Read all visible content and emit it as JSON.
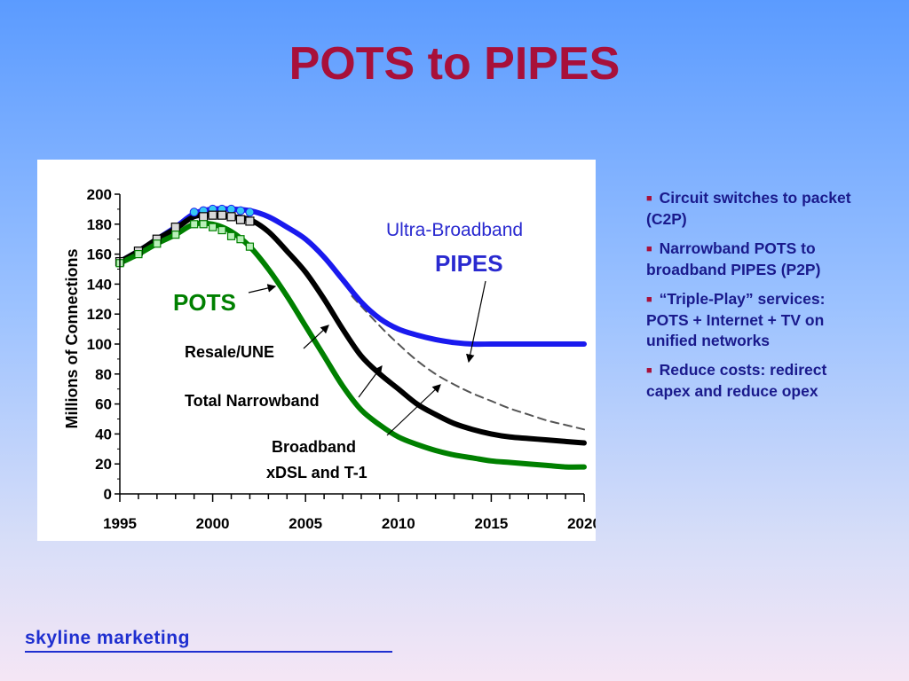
{
  "slide": {
    "title": "POTS to PIPES",
    "bullets": [
      "Circuit switches to packet (C2P)",
      "Narrowband POTS to broadband PIPES (P2P)",
      "“Triple-Play” services:  POTS + Internet + TV on unified networks",
      "Reduce costs: redirect capex and reduce opex"
    ],
    "footer": "skyline marketing"
  },
  "colors": {
    "title": "#a8103a",
    "bullet_text": "#1a1a8c",
    "footer": "#1f2fd0",
    "ultra_broadband": "#1a1aee",
    "total_narrowband": "#000000",
    "pots": "#008000",
    "dashed": "#555555"
  },
  "chart_data": {
    "type": "line",
    "ylabel": "Millions of Connections",
    "xlabel": "",
    "xlim": [
      1995,
      2020
    ],
    "ylim": [
      0,
      200
    ],
    "xticks": [
      "1995",
      "2000",
      "2005",
      "2010",
      "2015",
      "2020"
    ],
    "yticks": [
      "0",
      "20",
      "40",
      "60",
      "80",
      "100",
      "120",
      "140",
      "160",
      "180",
      "200"
    ],
    "annotations": [
      "Ultra-Broadband",
      "PIPES",
      "POTS",
      "Resale/UNE",
      "Total Narrowband",
      "Broadband",
      "xDSL and T-1"
    ],
    "series": [
      {
        "name": "Ultra-Broadband PIPES",
        "color": "#1a1aee",
        "x": [
          1995,
          1996,
          1997,
          1998,
          1999,
          2000,
          2001,
          2002,
          2003,
          2004,
          2005,
          2006,
          2007,
          2008,
          2009,
          2010,
          2011,
          2012,
          2013,
          2014,
          2015,
          2016,
          2017,
          2018,
          2019,
          2020
        ],
        "y": [
          155,
          162,
          170,
          178,
          187,
          190,
          190,
          189,
          185,
          178,
          170,
          158,
          143,
          128,
          117,
          110,
          106,
          103,
          101,
          100,
          100,
          100,
          100,
          100,
          100,
          100
        ],
        "markers_x": [
          1999,
          1999.5,
          2000,
          2000.5,
          2001,
          2001.5,
          2002
        ],
        "markers_y": [
          188,
          189,
          190,
          190,
          190,
          189,
          188
        ]
      },
      {
        "name": "Total Narrowband",
        "color": "#000000",
        "x": [
          1995,
          1996,
          1997,
          1998,
          1999,
          2000,
          2001,
          2002,
          2003,
          2004,
          2005,
          2006,
          2007,
          2008,
          2009,
          2010,
          2011,
          2012,
          2013,
          2014,
          2015,
          2016,
          2017,
          2018,
          2019,
          2020
        ],
        "y": [
          155,
          162,
          170,
          177,
          185,
          186,
          185,
          183,
          175,
          162,
          148,
          130,
          110,
          92,
          80,
          70,
          60,
          53,
          47,
          43,
          40,
          38,
          37,
          36,
          35,
          34
        ],
        "markers_x": [
          1995,
          1996,
          1997,
          1998,
          1999.5,
          2000,
          2000.5,
          2001,
          2001.5,
          2002
        ],
        "markers_y": [
          155,
          162,
          170,
          178,
          185,
          186,
          186,
          185,
          183,
          182
        ]
      },
      {
        "name": "POTS",
        "color": "#008000",
        "x": [
          1995,
          1996,
          1997,
          1998,
          1999,
          2000,
          2001,
          2002,
          2003,
          2004,
          2005,
          2006,
          2007,
          2008,
          2009,
          2010,
          2011,
          2012,
          2013,
          2014,
          2015,
          2016,
          2017,
          2018,
          2019,
          2020
        ],
        "y": [
          154,
          160,
          167,
          173,
          180,
          180,
          175,
          165,
          150,
          132,
          112,
          92,
          72,
          56,
          46,
          38,
          33,
          29,
          26,
          24,
          22,
          21,
          20,
          19,
          18,
          18
        ],
        "markers_x": [
          1995,
          1996,
          1997,
          1998,
          1999,
          1999.5,
          2000,
          2000.5,
          2001,
          2001.5,
          2002
        ],
        "markers_y": [
          154,
          160,
          167,
          173,
          180,
          180,
          178,
          176,
          172,
          170,
          165
        ]
      },
      {
        "name": "Resale/UNE",
        "color": "#555555",
        "dashed": true,
        "x": [
          2007.5,
          2009,
          2010,
          2011,
          2012,
          2013,
          2014,
          2015,
          2016,
          2017,
          2018,
          2019,
          2020
        ],
        "y": [
          132,
          112,
          100,
          89,
          80,
          73,
          67,
          62,
          57,
          53,
          49,
          46,
          43
        ]
      }
    ]
  }
}
